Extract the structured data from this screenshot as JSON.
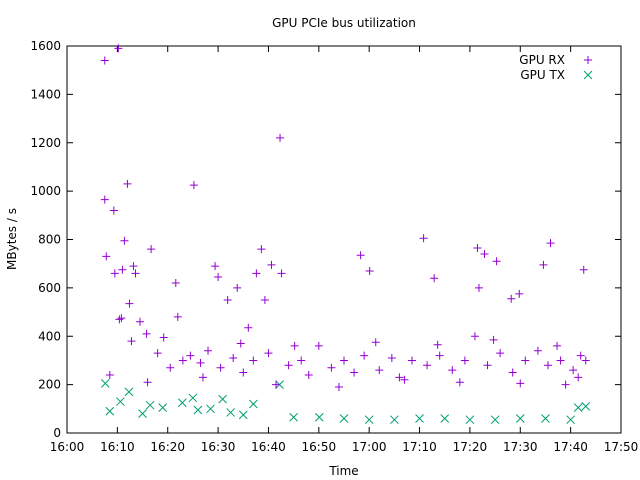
{
  "chart_data": {
    "type": "scatter",
    "title": "GPU PCIe bus utilization",
    "xlabel": "Time",
    "ylabel": "MBytes / s",
    "xlim_minutes": [
      0,
      110
    ],
    "ylim": [
      0,
      1600
    ],
    "x_ticks": [
      {
        "minute": 0,
        "label": "16:00"
      },
      {
        "minute": 10,
        "label": "16:10"
      },
      {
        "minute": 20,
        "label": "16:20"
      },
      {
        "minute": 30,
        "label": "16:30"
      },
      {
        "minute": 40,
        "label": "16:40"
      },
      {
        "minute": 50,
        "label": "16:50"
      },
      {
        "minute": 60,
        "label": "17:00"
      },
      {
        "minute": 70,
        "label": "17:10"
      },
      {
        "minute": 80,
        "label": "17:20"
      },
      {
        "minute": 90,
        "label": "17:30"
      },
      {
        "minute": 100,
        "label": "17:40"
      },
      {
        "minute": 110,
        "label": "17:50"
      }
    ],
    "y_ticks": [
      0,
      200,
      400,
      600,
      800,
      1000,
      1200,
      1400,
      1600
    ],
    "legend_position": "top-right",
    "series": [
      {
        "name": "GPU RX",
        "marker": "plus",
        "color": "#9400d3",
        "points": [
          [
            7.5,
            1540
          ],
          [
            7.5,
            965
          ],
          [
            7.8,
            730
          ],
          [
            9.3,
            920
          ],
          [
            10.2,
            1590
          ],
          [
            10.8,
            475
          ],
          [
            11.4,
            795
          ],
          [
            12.0,
            1030
          ],
          [
            12.4,
            535
          ],
          [
            13.2,
            690
          ],
          [
            13.6,
            660
          ],
          [
            15.8,
            410
          ],
          [
            16.7,
            760
          ],
          [
            21.6,
            620
          ],
          [
            22.0,
            480
          ],
          [
            25.2,
            1025
          ],
          [
            29.4,
            690
          ],
          [
            30.0,
            645
          ],
          [
            31.9,
            550
          ],
          [
            33.8,
            600
          ],
          [
            36.0,
            435
          ],
          [
            37.6,
            660
          ],
          [
            38.6,
            760
          ],
          [
            39.3,
            550
          ],
          [
            40.6,
            695
          ],
          [
            42.3,
            1220
          ],
          [
            42.6,
            660
          ],
          [
            58.3,
            735
          ],
          [
            60.1,
            670
          ],
          [
            70.8,
            805
          ],
          [
            72.9,
            640
          ],
          [
            81.5,
            765
          ],
          [
            81.8,
            600
          ],
          [
            82.9,
            740
          ],
          [
            85.3,
            710
          ],
          [
            88.2,
            555
          ],
          [
            89.8,
            575
          ],
          [
            94.6,
            695
          ],
          [
            96.0,
            785
          ],
          [
            102.6,
            675
          ],
          [
            9.5,
            660
          ],
          [
            10.4,
            470
          ],
          [
            11.0,
            675
          ],
          [
            14.5,
            460
          ],
          [
            18.0,
            330
          ],
          [
            20.5,
            270
          ],
          [
            23.0,
            300
          ],
          [
            24.5,
            320
          ],
          [
            26.5,
            290
          ],
          [
            28.0,
            340
          ],
          [
            30.5,
            270
          ],
          [
            33.0,
            310
          ],
          [
            35.0,
            250
          ],
          [
            37.0,
            300
          ],
          [
            40.0,
            330
          ],
          [
            44.0,
            280
          ],
          [
            46.5,
            300
          ],
          [
            48.0,
            240
          ],
          [
            50.0,
            360
          ],
          [
            52.5,
            270
          ],
          [
            55.0,
            300
          ],
          [
            57.0,
            250
          ],
          [
            59.0,
            320
          ],
          [
            62.0,
            260
          ],
          [
            64.5,
            310
          ],
          [
            66.0,
            230
          ],
          [
            68.5,
            300
          ],
          [
            71.5,
            280
          ],
          [
            74.0,
            320
          ],
          [
            76.5,
            260
          ],
          [
            79.0,
            300
          ],
          [
            81.0,
            400
          ],
          [
            83.5,
            280
          ],
          [
            86.0,
            330
          ],
          [
            88.5,
            250
          ],
          [
            91.0,
            300
          ],
          [
            93.5,
            340
          ],
          [
            95.5,
            280
          ],
          [
            98.0,
            300
          ],
          [
            100.5,
            260
          ],
          [
            102.0,
            320
          ],
          [
            103.0,
            300
          ],
          [
            16.0,
            210
          ],
          [
            27.0,
            230
          ],
          [
            41.5,
            200
          ],
          [
            54.0,
            190
          ],
          [
            67.0,
            220
          ],
          [
            78.0,
            210
          ],
          [
            90.0,
            205
          ],
          [
            99.0,
            200
          ],
          [
            12.8,
            380
          ],
          [
            19.2,
            395
          ],
          [
            34.5,
            370
          ],
          [
            45.2,
            360
          ],
          [
            61.3,
            375
          ],
          [
            73.6,
            365
          ],
          [
            84.7,
            385
          ],
          [
            97.3,
            360
          ],
          [
            8.5,
            240
          ],
          [
            101.5,
            230
          ]
        ]
      },
      {
        "name": "GPU TX",
        "marker": "cross",
        "color": "#009e73",
        "points": [
          [
            7.6,
            205
          ],
          [
            42.2,
            200
          ],
          [
            12.3,
            170
          ],
          [
            25.0,
            145
          ],
          [
            22.9,
            125
          ],
          [
            10.6,
            130
          ],
          [
            16.5,
            115
          ],
          [
            30.9,
            140
          ],
          [
            37.0,
            120
          ],
          [
            28.5,
            100
          ],
          [
            19.0,
            105
          ],
          [
            50.1,
            65
          ],
          [
            60.0,
            55
          ],
          [
            70.0,
            60
          ],
          [
            80.0,
            55
          ],
          [
            90.0,
            60
          ],
          [
            100.0,
            55
          ],
          [
            101.5,
            105
          ],
          [
            103.0,
            110
          ],
          [
            8.5,
            90
          ],
          [
            15.0,
            80
          ],
          [
            35.0,
            75
          ],
          [
            45.0,
            65
          ],
          [
            55.0,
            60
          ],
          [
            65.0,
            55
          ],
          [
            75.0,
            60
          ],
          [
            85.0,
            55
          ],
          [
            95.0,
            60
          ],
          [
            26.0,
            95
          ],
          [
            32.5,
            85
          ]
        ]
      }
    ]
  }
}
